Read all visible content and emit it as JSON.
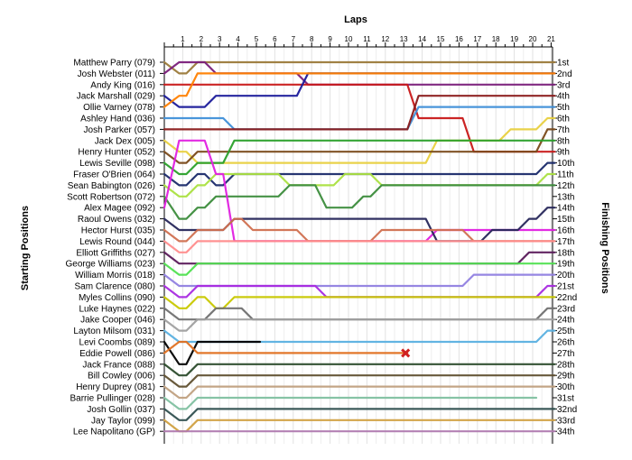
{
  "chart_data": {
    "type": "line",
    "title": "Laps",
    "ylabel_left": "Starting Positions",
    "ylabel_right": "Finishing Positions",
    "laps": [
      1,
      2,
      3,
      4,
      5,
      6,
      7,
      8,
      9,
      10,
      11,
      12,
      13,
      14,
      15,
      16,
      17,
      18,
      19,
      20,
      21
    ],
    "drivers": [
      "Matthew Parry (079)",
      "Josh Webster (011)",
      "Andy King (016)",
      "Jack Marshall (029)",
      "Ollie Varney (078)",
      "Ashley Hand (036)",
      "Josh Parker (057)",
      "Jack Dex (005)",
      "Henry Hunter (052)",
      "Lewis Seville (098)",
      "Fraser O'Brien (064)",
      "Sean Babington (026)",
      "Scott Robertson (072)",
      "Alex Magee (092)",
      "Raoul Owens (032)",
      "Hector Hurst (035)",
      "Lewis Round (044)",
      "Elliott Griffiths (027)",
      "George Williams (023)",
      "William Morris (018)",
      "Sam Clarence (080)",
      "Myles Collins (090)",
      "Luke Haynes (022)",
      "Jake Cooper (046)",
      "Layton Milsom (031)",
      "Levi Coombs (089)",
      "Eddie Powell (086)",
      "Jack France (088)",
      "Bill Cowley (006)",
      "Henry Duprey (081)",
      "Barrie Pullinger (028)",
      "Josh Gollin (037)",
      "Jay Taylor (099)",
      "Lee Napolitano (GP)"
    ],
    "finishing": [
      "1st",
      "2nd",
      "3rd",
      "4th",
      "5th",
      "6th",
      "7th",
      "8th",
      "9th",
      "10th",
      "11th",
      "12th",
      "13th",
      "14th",
      "15th",
      "16th",
      "17th",
      "18th",
      "19th",
      "20th",
      "21st",
      "22nd",
      "23rd",
      "24th",
      "25th",
      "26th",
      "27th",
      "28th",
      "29th",
      "30th",
      "31st",
      "32nd",
      "33rd",
      "34th"
    ],
    "series": [
      {
        "start": 1,
        "color": "#9b7a3a",
        "pos": [
          2,
          1,
          1,
          1,
          1,
          1,
          1,
          1,
          1,
          1,
          1,
          1,
          1,
          1,
          1,
          1,
          1,
          1,
          1,
          1,
          1
        ]
      },
      {
        "start": 2,
        "color": "#7a1e7a",
        "pos": [
          1,
          1,
          2,
          2,
          2,
          2,
          2,
          3,
          3,
          3,
          3,
          3,
          3,
          3,
          3,
          3,
          3,
          3,
          3,
          3,
          3
        ]
      },
      {
        "start": 3,
        "color": "#c81818",
        "pos": [
          3,
          3,
          3,
          3,
          3,
          3,
          3,
          3,
          3,
          3,
          3,
          3,
          3,
          6,
          6,
          6,
          9,
          9,
          9,
          9,
          9
        ]
      },
      {
        "start": 4,
        "color": "#1a1a9a",
        "pos": [
          5,
          5,
          4,
          4,
          4,
          4,
          4,
          2,
          2,
          2,
          2,
          2,
          2,
          2,
          2,
          2,
          2,
          2,
          2,
          2,
          2
        ]
      },
      {
        "start": 5,
        "color": "#ff7f00",
        "pos": [
          4,
          2,
          2,
          2,
          2,
          2,
          2,
          2,
          2,
          2,
          2,
          2,
          2,
          2,
          2,
          2,
          2,
          2,
          2,
          2,
          2
        ]
      },
      {
        "start": 6,
        "color": "#3f8fd8",
        "pos": [
          6,
          6,
          6,
          7,
          7,
          7,
          7,
          7,
          7,
          7,
          7,
          7,
          7,
          5,
          5,
          5,
          5,
          5,
          5,
          5,
          5
        ]
      },
      {
        "start": 7,
        "color": "#8a1a1a",
        "pos": [
          7,
          7,
          7,
          7,
          7,
          7,
          7,
          7,
          7,
          7,
          7,
          7,
          7,
          4,
          4,
          4,
          4,
          4,
          4,
          4,
          4
        ]
      },
      {
        "start": 8,
        "color": "#e8d040",
        "pos": [
          9,
          10,
          10,
          10,
          10,
          10,
          10,
          10,
          10,
          10,
          10,
          10,
          10,
          10,
          8,
          8,
          8,
          8,
          7,
          7,
          6
        ]
      },
      {
        "start": 9,
        "color": "#7a4a1a",
        "pos": [
          10,
          9,
          9,
          9,
          9,
          9,
          9,
          9,
          9,
          9,
          9,
          9,
          9,
          9,
          9,
          9,
          9,
          9,
          9,
          9,
          7
        ]
      },
      {
        "start": 10,
        "color": "#2aa02a",
        "pos": [
          11,
          10,
          10,
          8,
          8,
          8,
          8,
          8,
          8,
          8,
          8,
          8,
          8,
          8,
          8,
          8,
          8,
          8,
          8,
          8,
          8
        ]
      },
      {
        "start": 11,
        "color": "#1a2a6a",
        "pos": [
          12,
          11,
          12,
          11,
          11,
          11,
          11,
          11,
          11,
          11,
          11,
          11,
          11,
          11,
          11,
          11,
          11,
          11,
          11,
          11,
          10
        ]
      },
      {
        "start": 12,
        "color": "#aae040",
        "pos": [
          13,
          12,
          11,
          11,
          11,
          11,
          12,
          12,
          12,
          11,
          11,
          12,
          12,
          12,
          12,
          12,
          12,
          12,
          12,
          12,
          11
        ]
      },
      {
        "start": 13,
        "color": "#3c8c3c",
        "pos": [
          15,
          14,
          13,
          13,
          13,
          13,
          12,
          12,
          14,
          14,
          13,
          12,
          12,
          12,
          12,
          12,
          12,
          12,
          12,
          12,
          12
        ]
      },
      {
        "start": 14,
        "color": "#e020e0",
        "pos": [
          8,
          8,
          11,
          17,
          17,
          17,
          17,
          17,
          17,
          17,
          17,
          17,
          17,
          17,
          16,
          16,
          16,
          16,
          16,
          16,
          16
        ]
      },
      {
        "start": 15,
        "color": "#26265a",
        "pos": [
          16,
          16,
          16,
          15,
          15,
          15,
          15,
          15,
          15,
          15,
          15,
          15,
          15,
          15,
          17,
          17,
          17,
          16,
          16,
          15,
          14
        ]
      },
      {
        "start": 16,
        "color": "#d07050",
        "pos": [
          17,
          16,
          16,
          15,
          16,
          16,
          16,
          17,
          17,
          17,
          17,
          16,
          16,
          16,
          16,
          16,
          17,
          17,
          17,
          17,
          17
        ]
      },
      {
        "start": 17,
        "color": "#ff8c8c",
        "pos": [
          18,
          17,
          17,
          17,
          17,
          17,
          17,
          17,
          17,
          17,
          17,
          17,
          17,
          17,
          17,
          17,
          17,
          17,
          17,
          17,
          17
        ]
      },
      {
        "start": 18,
        "color": "#5a1a5a",
        "pos": [
          19,
          19,
          19,
          19,
          19,
          19,
          19,
          19,
          19,
          19,
          19,
          19,
          19,
          19,
          19,
          19,
          19,
          19,
          19,
          18,
          18
        ]
      },
      {
        "start": 19,
        "color": "#50e050",
        "pos": [
          20,
          19,
          19,
          19,
          19,
          19,
          19,
          19,
          19,
          19,
          19,
          19,
          19,
          19,
          19,
          19,
          19,
          19,
          19,
          19,
          19
        ]
      },
      {
        "start": 20,
        "color": "#9080e0",
        "pos": [
          21,
          21,
          21,
          21,
          21,
          21,
          21,
          21,
          21,
          21,
          21,
          21,
          21,
          21,
          21,
          21,
          20,
          20,
          20,
          20,
          20
        ]
      },
      {
        "start": 21,
        "color": "#a82ae0",
        "pos": [
          22,
          21,
          21,
          21,
          21,
          21,
          21,
          21,
          22,
          22,
          22,
          22,
          22,
          22,
          22,
          22,
          22,
          22,
          22,
          22,
          21
        ]
      },
      {
        "start": 22,
        "color": "#c8c800",
        "pos": [
          23,
          22,
          23,
          22,
          22,
          22,
          22,
          22,
          22,
          22,
          22,
          22,
          22,
          22,
          22,
          22,
          22,
          22,
          22,
          22,
          22
        ]
      },
      {
        "start": 23,
        "color": "#707070",
        "pos": [
          24,
          24,
          23,
          23,
          24,
          24,
          24,
          24,
          24,
          24,
          24,
          24,
          24,
          24,
          24,
          24,
          24,
          24,
          24,
          24,
          23
        ]
      },
      {
        "start": 24,
        "color": "#a0a0a0",
        "pos": [
          25,
          24,
          24,
          24,
          24,
          24,
          24,
          24,
          24,
          24,
          24,
          24,
          24,
          24,
          24,
          24,
          24,
          24,
          24,
          24,
          24
        ]
      },
      {
        "start": 25,
        "color": "#5ab0e0",
        "pos": [
          26,
          26,
          26,
          26,
          26,
          26,
          26,
          26,
          26,
          26,
          26,
          26,
          26,
          26,
          26,
          26,
          26,
          26,
          26,
          26,
          25
        ]
      },
      {
        "start": 26,
        "color": "#000000",
        "pos": [
          28,
          26,
          26,
          26,
          26
        ]
      },
      {
        "start": 27,
        "color": "#e07020",
        "pos": [
          26,
          27,
          27,
          27,
          27,
          27,
          27,
          27,
          27,
          27,
          27,
          27,
          27
        ]
      },
      {
        "start": 28,
        "color": "#2a4a2a",
        "pos": [
          29,
          28,
          28,
          28,
          28,
          28,
          28,
          28,
          28,
          28,
          28,
          28,
          28,
          28,
          28,
          28,
          28,
          28,
          28,
          28,
          28
        ]
      },
      {
        "start": 29,
        "color": "#605030",
        "pos": [
          30,
          29,
          29,
          29,
          29,
          29,
          29,
          29,
          29,
          29,
          29,
          29,
          29,
          29,
          29,
          29,
          29,
          29,
          29,
          29,
          29
        ]
      },
      {
        "start": 30,
        "color": "#c0a080",
        "pos": [
          31,
          30,
          30,
          30,
          30,
          30,
          30,
          30,
          30,
          30,
          30,
          30,
          30,
          30,
          30,
          30,
          30,
          30,
          30,
          30,
          30
        ]
      },
      {
        "start": 31,
        "color": "#80c0a0",
        "pos": [
          32,
          31,
          31,
          31,
          31,
          31,
          31,
          31,
          31,
          31,
          31,
          31,
          31,
          31,
          31,
          31,
          31,
          31,
          31,
          31
        ]
      },
      {
        "start": 32,
        "color": "#305050",
        "pos": [
          33,
          32,
          32,
          32,
          32,
          32,
          32,
          32,
          32,
          32,
          32,
          32,
          32,
          32,
          32,
          32,
          32,
          32,
          32,
          32,
          32
        ]
      },
      {
        "start": 33,
        "color": "#d0a040",
        "pos": [
          34,
          33,
          33,
          33,
          33,
          33,
          33,
          33,
          33,
          33,
          33,
          33,
          33,
          33,
          33,
          33,
          33,
          33,
          33,
          33,
          33
        ]
      },
      {
        "start": 34,
        "color": "#b07ab0",
        "pos": [
          34,
          34,
          34,
          34,
          34,
          34,
          34,
          34,
          34,
          34,
          34,
          34,
          34,
          34,
          34,
          34,
          34,
          34,
          34,
          34,
          34
        ]
      }
    ],
    "retired_marker": {
      "lap": 13,
      "pos": 27,
      "color": "#d02020"
    },
    "grid": true
  }
}
